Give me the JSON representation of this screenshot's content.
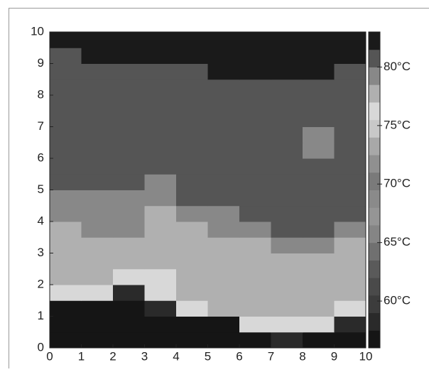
{
  "chart_data": {
    "type": "heatmap",
    "xlim": [
      0,
      10
    ],
    "ylim": [
      0,
      10
    ],
    "xticks": [
      0,
      1,
      2,
      3,
      4,
      5,
      6,
      7,
      8,
      9,
      10
    ],
    "yticks": [
      0,
      1,
      2,
      3,
      4,
      5,
      6,
      7,
      8,
      9,
      10
    ],
    "values": [
      [
        57,
        57,
        57,
        57,
        57,
        57,
        57,
        58,
        57,
        57
      ],
      [
        57,
        57,
        57,
        57,
        57,
        57,
        76,
        76,
        76,
        58
      ],
      [
        57,
        57,
        57,
        58,
        76,
        77.5,
        77.5,
        77.5,
        77.5,
        76
      ],
      [
        76,
        76,
        58,
        76,
        77.5,
        77.5,
        77.5,
        77.5,
        77.5,
        77.5
      ],
      [
        77.5,
        77.5,
        76,
        76,
        77.5,
        77.5,
        77.5,
        77.5,
        77.5,
        77.5
      ],
      [
        77.5,
        77.5,
        77.5,
        77.5,
        77.5,
        77.5,
        77.5,
        77.5,
        77.5,
        77.5
      ],
      [
        77.5,
        77.5,
        77.5,
        77.5,
        77.5,
        77.5,
        77.5,
        79,
        79,
        77.5
      ],
      [
        77.5,
        79,
        79,
        77.5,
        77.5,
        79,
        79,
        81,
        81,
        79
      ],
      [
        79,
        79,
        79,
        77.5,
        79,
        79,
        81,
        81,
        81,
        81
      ],
      [
        79,
        79,
        79,
        79,
        81,
        81,
        81,
        81,
        81,
        81
      ],
      [
        81,
        81,
        81,
        79,
        81,
        81,
        81,
        81,
        81,
        81
      ],
      [
        81,
        81,
        81,
        81,
        81,
        81,
        81,
        81,
        81,
        81
      ],
      [
        81,
        81,
        81,
        81,
        81,
        81,
        81,
        81,
        79,
        81
      ],
      [
        81,
        81,
        81,
        81,
        81,
        81,
        81,
        81,
        79,
        81
      ],
      [
        81,
        81,
        81,
        81,
        81,
        81,
        81,
        81,
        81,
        81
      ],
      [
        81,
        81,
        81,
        81,
        81,
        81,
        81,
        81,
        81,
        81
      ],
      [
        81,
        81,
        81,
        81,
        81,
        81,
        81,
        81,
        81,
        81
      ],
      [
        81,
        81,
        81,
        81,
        81,
        82,
        82,
        82,
        82,
        81
      ],
      [
        81,
        82,
        82,
        82,
        82,
        82,
        82,
        82,
        82,
        82
      ],
      [
        82,
        82,
        82,
        82,
        82,
        82,
        82,
        82,
        82,
        82
      ]
    ],
    "levels": [
      56,
      57.5,
      59,
      60.5,
      62,
      63.5,
      65,
      66.5,
      68,
      69.5,
      71,
      72.5,
      74,
      75.5,
      77,
      78.5,
      80,
      81.5,
      83
    ],
    "colors": [
      "#151515",
      "#2a2a2a",
      "#3c3c3c",
      "#4a4a4a",
      "#5a5a5a",
      "#707070",
      "#858585",
      "#959595",
      "#8a8a8a",
      "#7a7a7a",
      "#909090",
      "#a8a8a8",
      "#c8c8c8",
      "#d8d8d8",
      "#b0b0b0",
      "#888888",
      "#555555",
      "#1a1a1a"
    ],
    "colorbar_ticks": [
      {
        "value": 60,
        "label": "60°C"
      },
      {
        "value": 65,
        "label": "65°C"
      },
      {
        "value": 70,
        "label": "70°C"
      },
      {
        "value": 75,
        "label": "75°C"
      },
      {
        "value": 80,
        "label": "80°C"
      }
    ]
  }
}
